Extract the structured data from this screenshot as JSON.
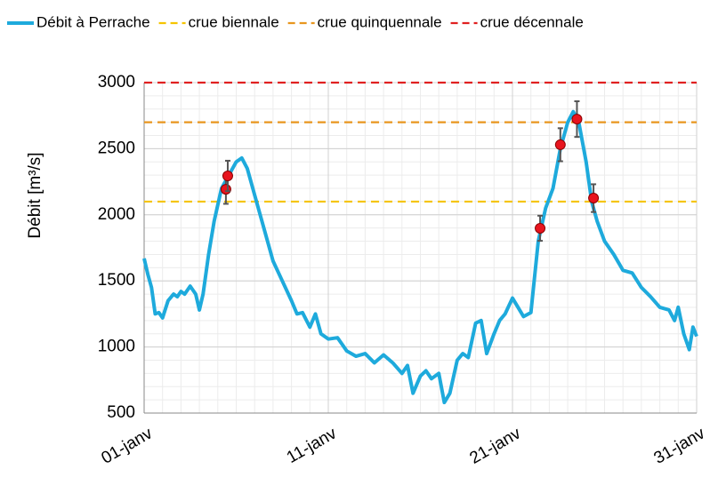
{
  "chart_data": {
    "type": "line",
    "ylabel": "Débit [m³/s]",
    "xlim": [
      1,
      31
    ],
    "xticks": [
      {
        "value": 1,
        "label": "01-janv"
      },
      {
        "value": 11,
        "label": "11-janv"
      },
      {
        "value": 21,
        "label": "21-janv"
      },
      {
        "value": 31,
        "label": "31-janv"
      }
    ],
    "ylim": [
      500,
      3000
    ],
    "yticks": [
      500,
      1000,
      1500,
      2000,
      2500,
      3000
    ],
    "grid": true,
    "minor_grid": true,
    "legend": "top",
    "series": [
      {
        "name": "Débit à Perrache",
        "color": "#1eaadc",
        "x": [
          1,
          1.2,
          1.4,
          1.6,
          1.8,
          2.0,
          2.3,
          2.6,
          2.8,
          3.0,
          3.2,
          3.5,
          3.8,
          4.0,
          4.2,
          4.5,
          4.8,
          5.2,
          5.6,
          6.0,
          6.3,
          6.6,
          7.0,
          7.5,
          8.0,
          8.5,
          9.0,
          9.3,
          9.6,
          10.0,
          10.3,
          10.6,
          11.0,
          11.5,
          12.0,
          12.5,
          13.0,
          13.5,
          14.0,
          14.5,
          15.0,
          15.3,
          15.6,
          16.0,
          16.3,
          16.6,
          17.0,
          17.3,
          17.6,
          18.0,
          18.3,
          18.6,
          19.0,
          19.3,
          19.6,
          20.0,
          20.3,
          20.6,
          21.0,
          21.3,
          21.6,
          22.0,
          22.4,
          22.8,
          23.2,
          23.6,
          24.0,
          24.3,
          24.6,
          25.0,
          25.3,
          25.6,
          26.0,
          26.5,
          27.0,
          27.5,
          28.0,
          28.5,
          29.0,
          29.5,
          29.8,
          30.0,
          30.3,
          30.6,
          30.8,
          31.0
        ],
        "values": [
          1670,
          1550,
          1450,
          1250,
          1260,
          1220,
          1350,
          1400,
          1380,
          1420,
          1400,
          1460,
          1400,
          1280,
          1400,
          1700,
          1950,
          2200,
          2300,
          2400,
          2430,
          2350,
          2150,
          1900,
          1650,
          1500,
          1350,
          1250,
          1260,
          1150,
          1250,
          1100,
          1060,
          1070,
          970,
          930,
          950,
          880,
          940,
          880,
          800,
          860,
          650,
          780,
          820,
          760,
          800,
          580,
          650,
          900,
          950,
          920,
          1180,
          1200,
          950,
          1100,
          1200,
          1250,
          1370,
          1300,
          1230,
          1260,
          1800,
          2050,
          2200,
          2500,
          2700,
          2780,
          2700,
          2400,
          2100,
          1950,
          1800,
          1700,
          1580,
          1560,
          1450,
          1380,
          1300,
          1280,
          1200,
          1300,
          1100,
          980,
          1150,
          1080
        ]
      }
    ],
    "hlines": [
      {
        "name": "crue biennale",
        "color": "#f5c400",
        "value": 2100
      },
      {
        "name": "crue quinquennale",
        "color": "#e8961e",
        "value": 2700
      },
      {
        "name": "crue décennale",
        "color": "#e02020",
        "value": 3000
      }
    ],
    "points": {
      "color": "#e8141e",
      "x": [
        5.44,
        5.54,
        22.5,
        23.6,
        24.5,
        25.4
      ],
      "values": [
        2193,
        2294,
        1898,
        2530,
        2724,
        2126
      ],
      "errors": [
        110,
        115,
        95,
        125,
        135,
        105
      ]
    }
  }
}
